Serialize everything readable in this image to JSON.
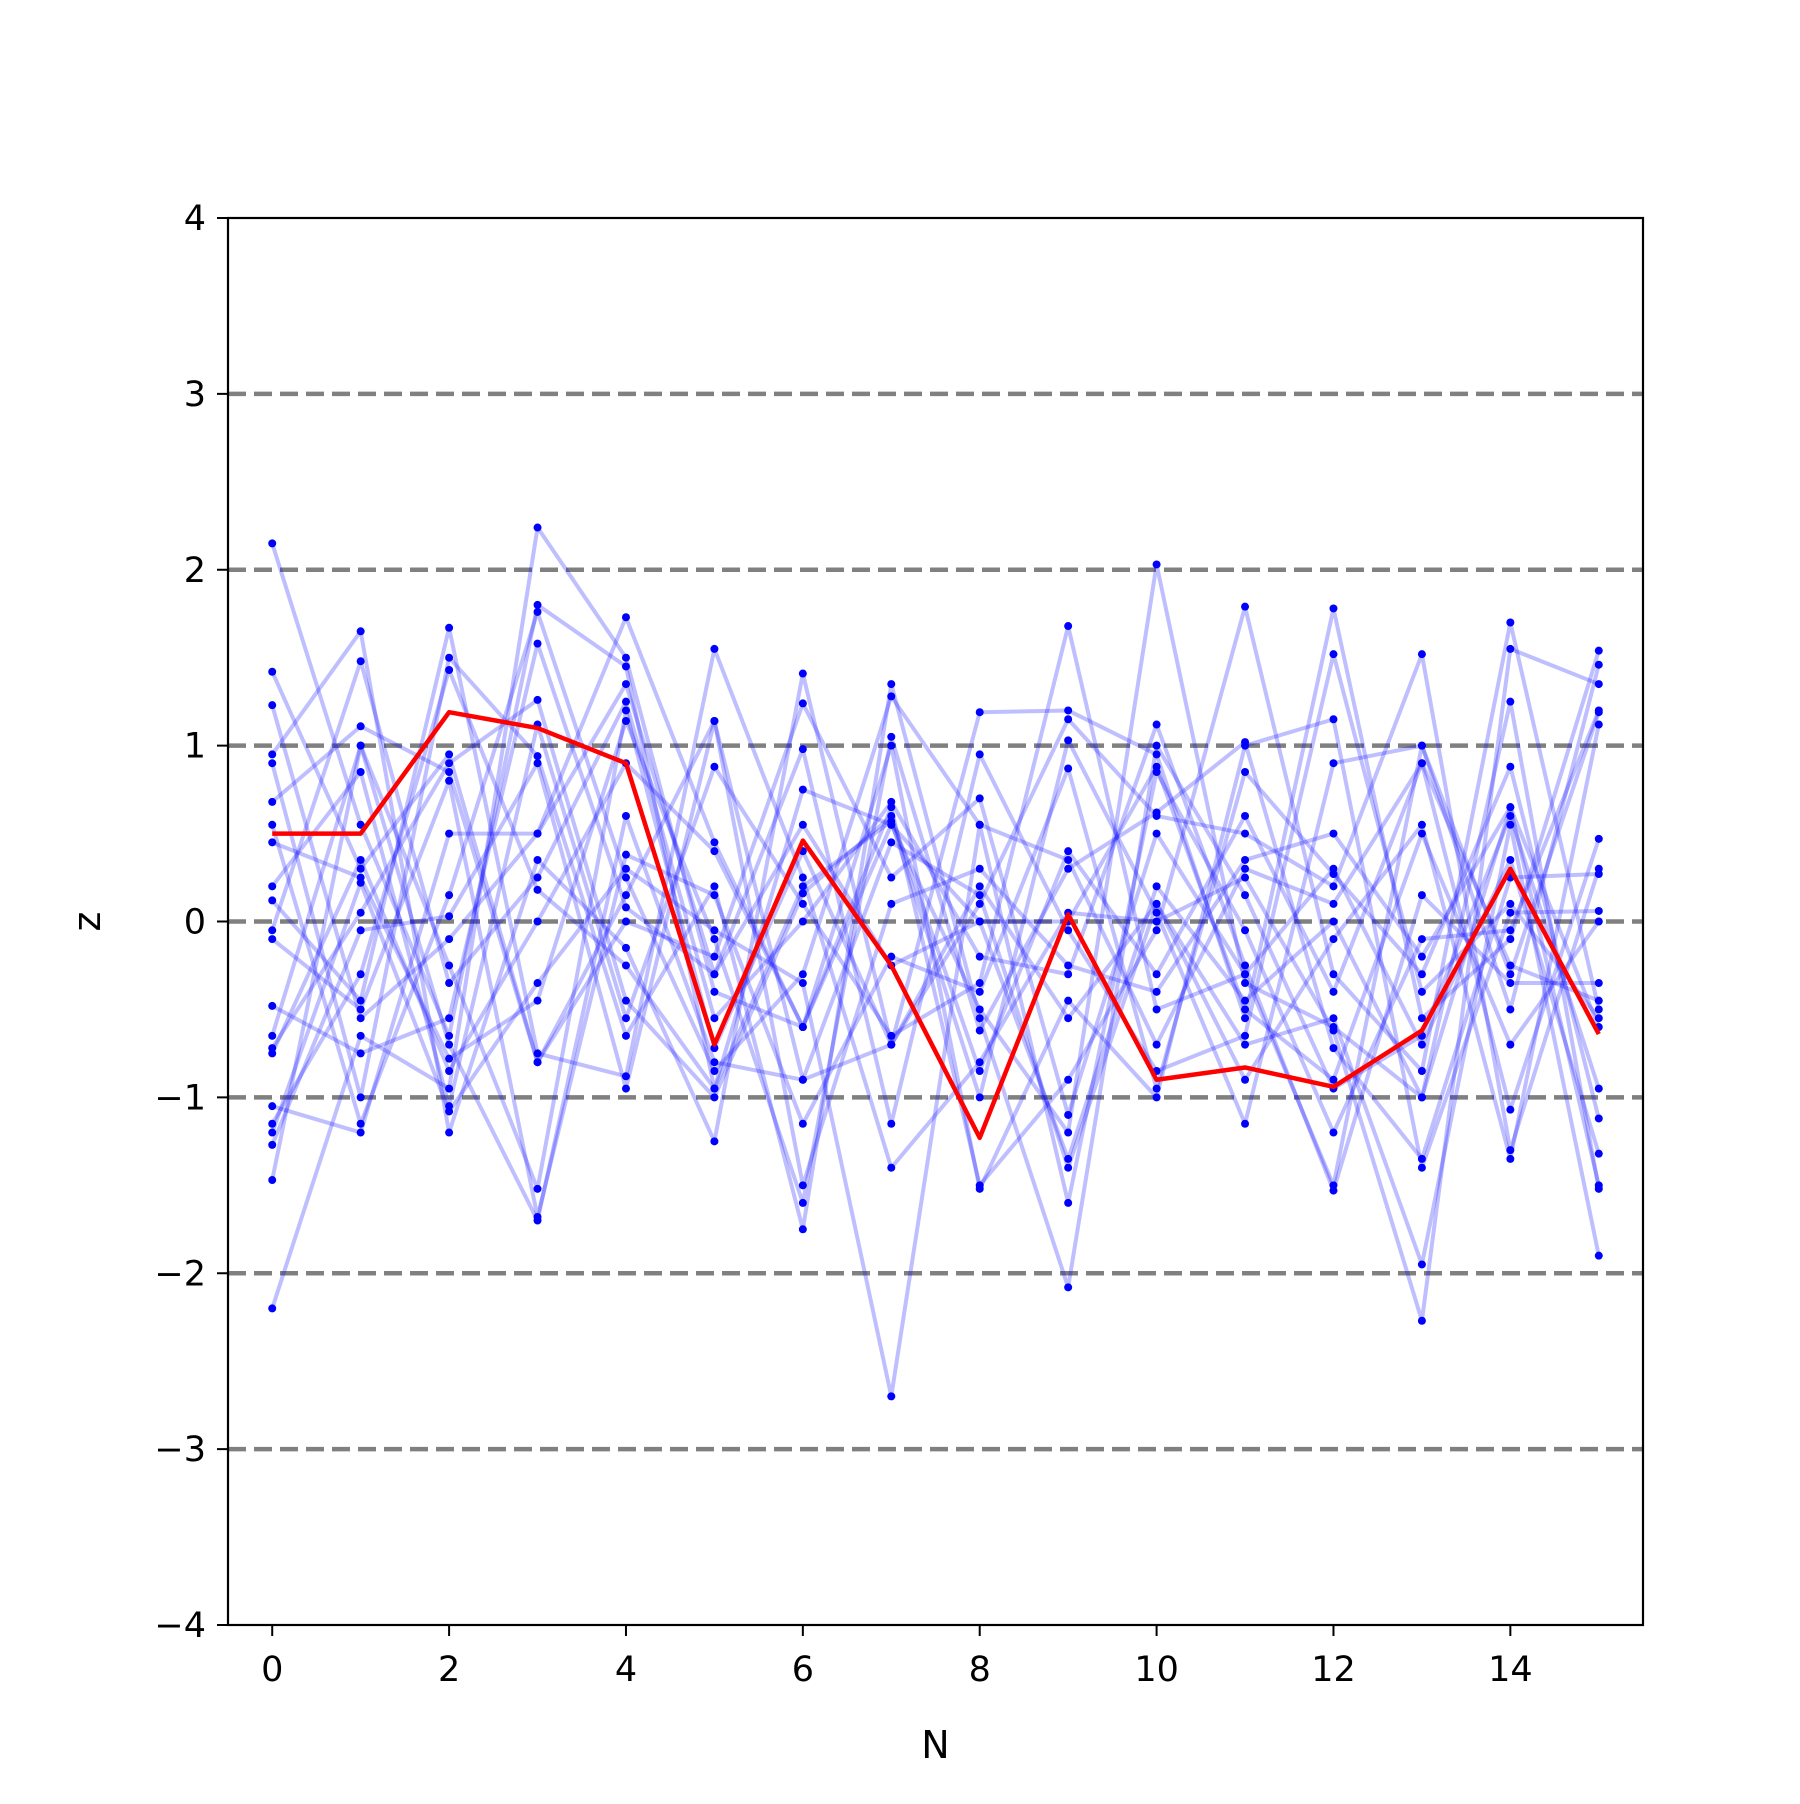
{
  "chart_data": {
    "type": "line",
    "title": "",
    "xlabel": "N",
    "ylabel": "z",
    "xlim": [
      -0.5,
      15.5
    ],
    "ylim": [
      -4,
      4
    ],
    "x": [
      0,
      1,
      2,
      3,
      4,
      5,
      6,
      7,
      8,
      9,
      10,
      11,
      12,
      13,
      14,
      15
    ],
    "xticks": [
      0,
      2,
      4,
      6,
      8,
      10,
      12,
      14
    ],
    "xtick_labels": [
      "0",
      "2",
      "4",
      "6",
      "8",
      "10",
      "12",
      "14"
    ],
    "yticks": [
      -4,
      -3,
      -2,
      -1,
      0,
      1,
      2,
      3,
      4
    ],
    "ytick_labels": [
      "−4",
      "−3",
      "−2",
      "−1",
      "0",
      "1",
      "2",
      "3",
      "4"
    ],
    "reference_lines": [
      -3,
      -2,
      -1,
      0,
      1,
      2,
      3
    ],
    "reference_line_color": "#808080",
    "background_series_color": "#0000ff",
    "highlight_color": "#ff0000",
    "highlight_series": {
      "values": [
        0.5,
        0.5,
        1.19,
        1.1,
        0.9,
        -0.7,
        0.46,
        -0.25,
        -1.23,
        0.04,
        -0.9,
        -0.83,
        -0.94,
        -0.62,
        0.3,
        -0.64
      ]
    },
    "series": [
      {
        "values": [
          2.15,
          0.55,
          -0.65,
          1.8,
          1.45,
          -0.95,
          0.75,
          0.55,
          -0.5,
          -1.2,
          2.03,
          -0.35,
          -0.6,
          -1.0,
          0.65,
          -1.5
        ]
      },
      {
        "values": [
          1.42,
          0.3,
          0.95,
          -0.8,
          0.15,
          1.14,
          -0.9,
          -0.7,
          0.1,
          1.15,
          0.6,
          0.5,
          0.2,
          1.52,
          -1.3,
          0.3
        ]
      },
      {
        "values": [
          1.23,
          -0.55,
          -0.1,
          0.5,
          1.73,
          0.45,
          -0.6,
          0.65,
          -1.5,
          -0.9,
          -0.05,
          1.79,
          -0.3,
          -0.85,
          1.7,
          -0.5
        ]
      },
      {
        "values": [
          0.95,
          1.65,
          -1.2,
          0.35,
          -0.15,
          -1.25,
          1.41,
          -0.7,
          1.19,
          1.2,
          0.95,
          -0.55,
          1.78,
          -0.55,
          -0.1,
          1.54
        ]
      },
      {
        "values": [
          0.9,
          -1.0,
          1.5,
          0.94,
          -0.65,
          0.2,
          -1.75,
          1.35,
          -0.55,
          -2.08,
          1.0,
          0.15,
          -0.95,
          -0.65,
          0.6,
          -0.95
        ]
      },
      {
        "values": [
          0.68,
          1.11,
          0.85,
          -0.8,
          0.0,
          -0.2,
          1.24,
          0.25,
          0.7,
          -1.1,
          0.5,
          -0.3,
          -1.5,
          1.0,
          -0.5,
          1.46
        ]
      },
      {
        "values": [
          0.55,
          -1.15,
          0.15,
          1.76,
          0.25,
          -0.85,
          -0.3,
          1.28,
          0.55,
          0.35,
          -0.7,
          0.3,
          0.1,
          0.9,
          -1.07,
          0.47
        ]
      },
      {
        "values": [
          0.45,
          0.25,
          -0.78,
          -0.45,
          1.14,
          -0.1,
          -1.6,
          1.05,
          -0.62,
          0.3,
          0.62,
          1.02,
          -0.72,
          -1.35,
          0.25,
          0.27
        ]
      },
      {
        "values": [
          0.2,
          0.85,
          -1.05,
          1.12,
          -0.55,
          0.88,
          0.1,
          -0.65,
          -0.35,
          1.68,
          -0.5,
          -0.3,
          0.3,
          -0.7,
          0.35,
          -1.32
        ]
      },
      {
        "values": [
          0.12,
          -0.45,
          1.67,
          -0.75,
          -0.88,
          1.55,
          0.25,
          -1.4,
          -0.8,
          0.05,
          0.0,
          0.25,
          -0.62,
          -2.27,
          1.55,
          1.35
        ]
      },
      {
        "values": [
          -0.05,
          1.48,
          -0.35,
          0.25,
          1.25,
          -0.55,
          0.0,
          0.68,
          -0.2,
          -0.3,
          1.12,
          -0.25,
          -1.53,
          0.15,
          -0.35,
          -0.35
        ]
      },
      {
        "values": [
          -0.1,
          -0.5,
          0.8,
          -1.68,
          0.38,
          0.15,
          -1.15,
          -0.2,
          -0.4,
          0.87,
          -0.95,
          0.85,
          0.27,
          -0.3,
          0.88,
          -1.12
        ]
      },
      {
        "values": [
          -0.48,
          -0.75,
          -0.55,
          1.58,
          0.08,
          -0.3,
          0.98,
          -1.15,
          0.95,
          -0.05,
          -0.85,
          -0.65,
          1.52,
          -0.4,
          0.1,
          -0.55
        ]
      },
      {
        "values": [
          -0.65,
          1.0,
          -0.25,
          -1.52,
          1.2,
          -0.72,
          0.4,
          -0.7,
          0.2,
          -0.55,
          0.1,
          -0.9,
          -0.1,
          0.55,
          -1.35,
          1.12
        ]
      },
      {
        "values": [
          -0.72,
          0.05,
          0.9,
          1.26,
          -0.45,
          -1.0,
          0.16,
          0.6,
          -0.85,
          0.4,
          -0.3,
          0.6,
          -0.4,
          0.9,
          -0.25,
          -0.45
        ]
      },
      {
        "values": [
          -0.75,
          0.35,
          -0.85,
          0.0,
          0.9,
          0.4,
          -0.6,
          1.0,
          -1.52,
          -0.45,
          -1.0,
          1.0,
          1.15,
          -1.4,
          0.05,
          0.06
        ]
      },
      {
        "values": [
          -1.05,
          -1.2,
          0.5,
          0.5,
          1.35,
          -0.3,
          0.55,
          -0.25,
          0.0,
          -1.35,
          0.2,
          -0.45,
          0.0,
          -1.0,
          1.25,
          -1.52
        ]
      },
      {
        "values": [
          -1.15,
          -0.3,
          1.43,
          0.18,
          -0.25,
          -0.95,
          0.2,
          0.57,
          -1.0,
          1.03,
          0.05,
          -1.15,
          0.9,
          1.0,
          -0.3,
          1.19
        ]
      },
      {
        "values": [
          -1.2,
          0.22,
          -1.08,
          -0.35,
          0.3,
          -0.05,
          -0.35,
          -2.7,
          0.55,
          -1.6,
          0.85,
          -0.05,
          -1.2,
          -0.1,
          -0.05,
          1.2
        ]
      },
      {
        "values": [
          -1.27,
          -0.05,
          0.03,
          0.9,
          -0.95,
          1.14,
          -1.5,
          0.1,
          0.3,
          -0.25,
          -0.4,
          0.35,
          0.5,
          -0.2,
          0.65,
          -0.6
        ]
      },
      {
        "values": [
          -1.47,
          1.0,
          -0.7,
          -1.7,
          0.6,
          -0.8,
          -0.9,
          0.45,
          0.15,
          -1.4,
          0.1,
          -0.7,
          -0.55,
          -1.95,
          0.55,
          -1.9
        ]
      },
      {
        "values": [
          -2.2,
          -0.65,
          -0.95,
          2.24,
          1.5,
          -0.4,
          -0.6,
          0.55,
          0.0,
          0.0,
          0.88,
          -0.5,
          -0.9,
          0.5,
          -0.7,
          0.0
        ]
      }
    ]
  }
}
